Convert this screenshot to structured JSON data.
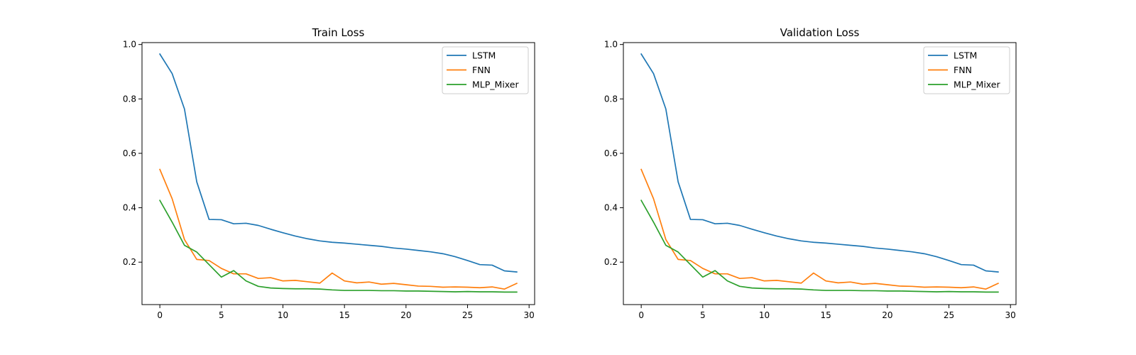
{
  "chart_data": [
    {
      "type": "line",
      "title": "Train Loss",
      "xlabel": "",
      "ylabel": "",
      "xlim": [
        -1.45,
        30.45
      ],
      "ylim": [
        0.044,
        1.007
      ],
      "xticks": [
        0,
        5,
        10,
        15,
        20,
        25,
        30
      ],
      "yticks": [
        0.2,
        0.4,
        0.6,
        0.8,
        1.0
      ],
      "ytick_labels": [
        "0.2",
        "0.4",
        "0.6",
        "0.8",
        "1.0"
      ],
      "grid": false,
      "legend": "top-right",
      "x": [
        0,
        1,
        2,
        3,
        4,
        5,
        6,
        7,
        8,
        9,
        10,
        11,
        12,
        13,
        14,
        15,
        16,
        17,
        18,
        19,
        20,
        21,
        22,
        23,
        24,
        25,
        26,
        27,
        28,
        29
      ],
      "series": [
        {
          "name": "LSTM",
          "color": "#1f77b4",
          "values": [
            0.965,
            0.893,
            0.763,
            0.495,
            0.357,
            0.356,
            0.341,
            0.343,
            0.335,
            0.321,
            0.308,
            0.296,
            0.286,
            0.278,
            0.273,
            0.27,
            0.266,
            0.262,
            0.258,
            0.252,
            0.248,
            0.243,
            0.238,
            0.231,
            0.22,
            0.206,
            0.191,
            0.189,
            0.168,
            0.164
          ]
        },
        {
          "name": "FNN",
          "color": "#ff7f0e",
          "values": [
            0.541,
            0.433,
            0.283,
            0.21,
            0.206,
            0.177,
            0.157,
            0.157,
            0.14,
            0.143,
            0.131,
            0.133,
            0.128,
            0.123,
            0.16,
            0.131,
            0.124,
            0.127,
            0.119,
            0.122,
            0.117,
            0.112,
            0.111,
            0.108,
            0.109,
            0.108,
            0.106,
            0.109,
            0.101,
            0.122
          ]
        },
        {
          "name": "MLP_Mixer",
          "color": "#2ca02c",
          "values": [
            0.427,
            0.347,
            0.262,
            0.237,
            0.191,
            0.145,
            0.169,
            0.131,
            0.111,
            0.105,
            0.103,
            0.102,
            0.102,
            0.101,
            0.098,
            0.096,
            0.096,
            0.096,
            0.095,
            0.095,
            0.094,
            0.094,
            0.093,
            0.092,
            0.091,
            0.092,
            0.091,
            0.091,
            0.09,
            0.09
          ]
        }
      ]
    },
    {
      "type": "line",
      "title": "Validation Loss",
      "xlabel": "",
      "ylabel": "",
      "xlim": [
        -1.45,
        30.45
      ],
      "ylim": [
        0.044,
        1.007
      ],
      "xticks": [
        0,
        5,
        10,
        15,
        20,
        25,
        30
      ],
      "yticks": [
        0.2,
        0.4,
        0.6,
        0.8,
        1.0
      ],
      "ytick_labels": [
        "0.2",
        "0.4",
        "0.6",
        "0.8",
        "1.0"
      ],
      "grid": false,
      "legend": "top-right",
      "x": [
        0,
        1,
        2,
        3,
        4,
        5,
        6,
        7,
        8,
        9,
        10,
        11,
        12,
        13,
        14,
        15,
        16,
        17,
        18,
        19,
        20,
        21,
        22,
        23,
        24,
        25,
        26,
        27,
        28,
        29
      ],
      "series": [
        {
          "name": "LSTM",
          "color": "#1f77b4",
          "values": [
            0.965,
            0.893,
            0.763,
            0.495,
            0.357,
            0.356,
            0.341,
            0.343,
            0.335,
            0.321,
            0.308,
            0.296,
            0.286,
            0.278,
            0.273,
            0.27,
            0.266,
            0.262,
            0.258,
            0.252,
            0.248,
            0.243,
            0.238,
            0.231,
            0.22,
            0.206,
            0.191,
            0.189,
            0.168,
            0.164
          ]
        },
        {
          "name": "FNN",
          "color": "#ff7f0e",
          "values": [
            0.541,
            0.433,
            0.283,
            0.21,
            0.206,
            0.177,
            0.157,
            0.157,
            0.14,
            0.143,
            0.131,
            0.133,
            0.128,
            0.123,
            0.16,
            0.131,
            0.124,
            0.127,
            0.119,
            0.122,
            0.117,
            0.112,
            0.111,
            0.108,
            0.109,
            0.108,
            0.106,
            0.109,
            0.101,
            0.122
          ]
        },
        {
          "name": "MLP_Mixer",
          "color": "#2ca02c",
          "values": [
            0.427,
            0.347,
            0.262,
            0.237,
            0.191,
            0.145,
            0.169,
            0.131,
            0.111,
            0.105,
            0.103,
            0.102,
            0.102,
            0.101,
            0.098,
            0.096,
            0.096,
            0.096,
            0.095,
            0.095,
            0.094,
            0.094,
            0.093,
            0.092,
            0.091,
            0.092,
            0.091,
            0.091,
            0.09,
            0.09
          ]
        }
      ]
    }
  ]
}
